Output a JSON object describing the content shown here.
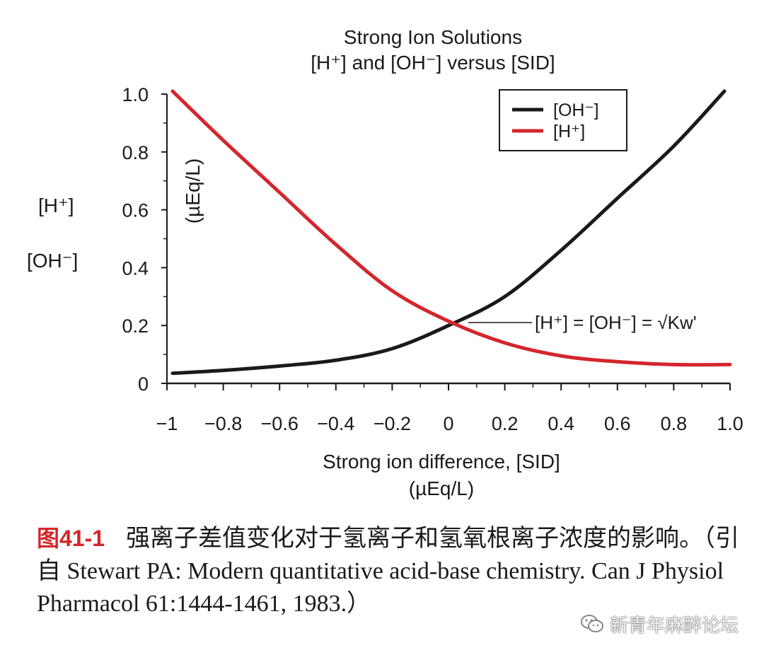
{
  "chart_data": {
    "type": "line",
    "title": "Strong Ion Solutions",
    "subtitle": "[H⁺] and [OH⁻] versus [SID]",
    "xlabel": "Strong ion difference, [SID]",
    "xunit": "(µEq/L)",
    "ylabel_h": "[H⁺]",
    "ylabel_oh": "[OH⁻]",
    "yunit": "(µEq/L)",
    "xlim": [
      -1,
      1
    ],
    "ylim": [
      0,
      1
    ],
    "xticks": [
      -1,
      -0.8,
      -0.6,
      -0.4,
      -0.2,
      0,
      0.2,
      0.4,
      0.6,
      0.8,
      1.0
    ],
    "xtick_labels": [
      "−1",
      "−0.8",
      "−0.6",
      "−0.4",
      "−0.2",
      "0",
      "0.2",
      "0.4",
      "0.6",
      "0.8",
      "1.0"
    ],
    "yticks": [
      0,
      0.2,
      0.4,
      0.6,
      0.8,
      1.0
    ],
    "ytick_labels": [
      "0",
      "0.2",
      "0.4",
      "0.6",
      "0.8",
      "1.0"
    ],
    "series": [
      {
        "name": "[OH⁻]",
        "color": "#1a1a1a",
        "x": [
          -0.98,
          -0.8,
          -0.6,
          -0.4,
          -0.2,
          0,
          0.2,
          0.4,
          0.6,
          0.8,
          0.98
        ],
        "y": [
          0.035,
          0.045,
          0.06,
          0.08,
          0.12,
          0.2,
          0.3,
          0.46,
          0.64,
          0.82,
          1.01
        ]
      },
      {
        "name": "[H⁺]",
        "color": "#d4262d",
        "x": [
          -0.98,
          -0.8,
          -0.6,
          -0.4,
          -0.2,
          0,
          0.2,
          0.4,
          0.6,
          0.8,
          1.0
        ],
        "y": [
          1.01,
          0.84,
          0.66,
          0.48,
          0.32,
          0.215,
          0.14,
          0.095,
          0.075,
          0.065,
          0.065
        ]
      }
    ],
    "annotation": {
      "text": "[H⁺] = [OH⁻] = √Kw'",
      "x": 0.02,
      "y": 0.21
    },
    "legend_position": "top-right"
  },
  "caption": {
    "label": "图41-1",
    "text": "强离子差值变化对于氢离子和氢氧根离子浓度的影响。（引自 Stewart PA: Modern quantitative acid-base chemistry. Can J Physiol Pharmacol 61:1444-1461, 1983.）"
  },
  "watermark": {
    "text": "新青年麻醉论坛",
    "icon": "wechat-icon"
  }
}
